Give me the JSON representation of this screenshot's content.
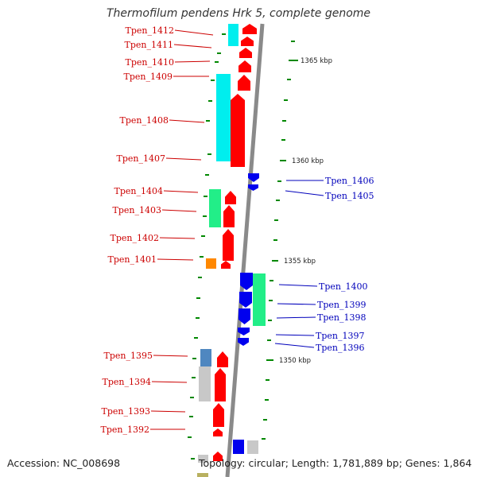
{
  "title": "Thermofilum pendens Hrk 5, complete genome",
  "accession": "Accession: NC_008698",
  "topology": "Topology: circular; Length: 1,781,889 bp; Genes: 1,864",
  "scale_labels": [
    "1365 kbp",
    "1360 kbp",
    "1355 kbp",
    "1350 kbp"
  ],
  "left_genes": [
    "Tpen_1412",
    "Tpen_1411",
    "Tpen_1410",
    "Tpen_1409",
    "Tpen_1408",
    "Tpen_1407",
    "Tpen_1404",
    "Tpen_1403",
    "Tpen_1402",
    "Tpen_1401",
    "Tpen_1395",
    "Tpen_1394",
    "Tpen_1393",
    "Tpen_1392"
  ],
  "right_genes": [
    "Tpen_1406",
    "Tpen_1405",
    "Tpen_1400",
    "Tpen_1399",
    "Tpen_1398",
    "Tpen_1397",
    "Tpen_1396"
  ],
  "colors": {
    "forward_gene": "#ff0000",
    "reverse_gene": "#0000ee",
    "cog_cyan": "#00eeee",
    "cog_green": "#22ee88",
    "cog_orange": "#ff8800",
    "cog_steelblue": "#4f87c0",
    "cog_gray": "#c8c8c8",
    "cog_olive": "#b8b060",
    "backbone": "#8a8a8a",
    "tick": "#008800",
    "label_forward": "#cc0000",
    "label_reverse": "#0000bb"
  }
}
